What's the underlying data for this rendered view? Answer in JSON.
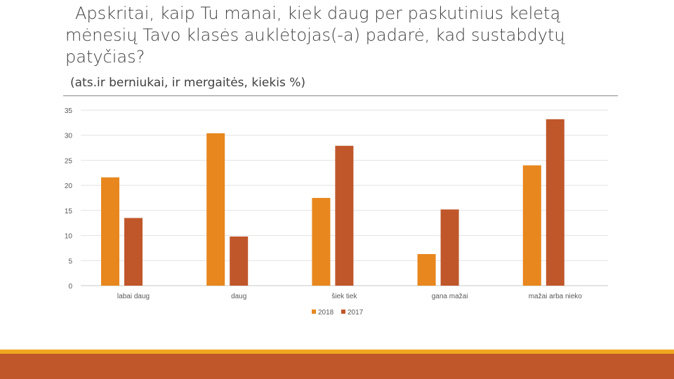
{
  "title": {
    "line1": "Apskritai, kaip Tu manai, kiek daug per paskutinius keletą",
    "line2": "mėnesių Tavo klasės auklėtojas(-a) padarė, kad sustabdytų",
    "line3": "patyčias?"
  },
  "subtitle": "(ats.ir berniukai, ir mergaitės, kiekis %)",
  "colors": {
    "series_2018": "#e8871e",
    "series_2017": "#c0572b",
    "band_top": "#f0a820",
    "band_bottom": "#c0572b"
  },
  "chart_data": {
    "type": "bar",
    "categories": [
      "labai daug",
      "daug",
      "šiek tiek",
      "gana mažai",
      "mažai arba nieko"
    ],
    "series": [
      {
        "name": "2018",
        "values": [
          21.6,
          30.4,
          17.5,
          6.3,
          24.0
        ]
      },
      {
        "name": "2017",
        "values": [
          13.5,
          9.8,
          27.9,
          15.2,
          33.2
        ]
      }
    ],
    "yticks": [
      "0",
      "5",
      "10",
      "15",
      "20",
      "25",
      "30",
      "35"
    ],
    "ylim": [
      0,
      35
    ],
    "grid": true,
    "legend": "bottom"
  }
}
